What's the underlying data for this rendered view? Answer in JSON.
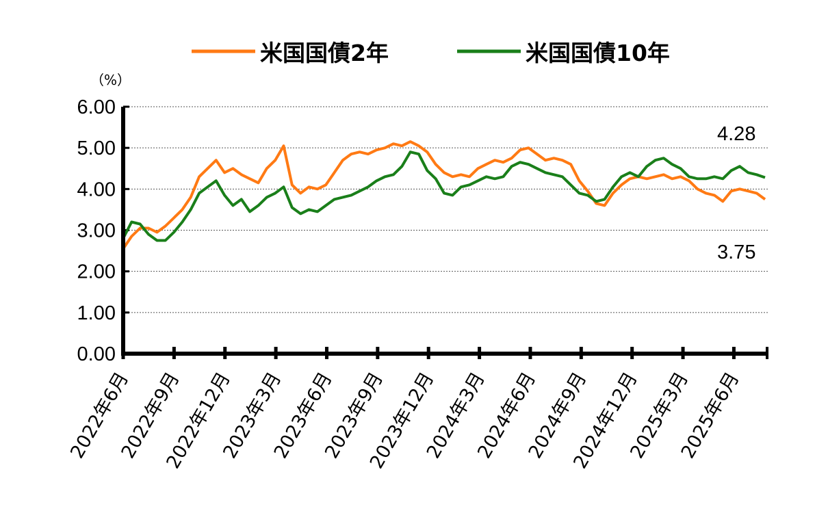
{
  "chart_data": {
    "type": "line",
    "ylabel": "（%）",
    "ylim": [
      0,
      6
    ],
    "yticks": [
      "0.00",
      "1.00",
      "2.00",
      "3.00",
      "4.00",
      "5.00",
      "6.00"
    ],
    "grid": "horizontal-dashed",
    "legend_position": "top",
    "x_range": [
      "2022-06",
      "2025-07"
    ],
    "xticks": [
      "2022年6月",
      "2022年9月",
      "2022年12月",
      "2023年3月",
      "2023年6月",
      "2023年9月",
      "2023年12月",
      "2024年3月",
      "2024年6月",
      "2024年9月",
      "2024年12月",
      "2025年3月",
      "2025年6月"
    ],
    "x": [
      "2022-06",
      "2022-06",
      "2022-06",
      "2022-07",
      "2022-07",
      "2022-08",
      "2022-08",
      "2022-09",
      "2022-09",
      "2022-10",
      "2022-10",
      "2022-11",
      "2022-11",
      "2022-12",
      "2022-12",
      "2023-01",
      "2023-01",
      "2023-02",
      "2023-02",
      "2023-03",
      "2023-03",
      "2023-03",
      "2023-04",
      "2023-04",
      "2023-05",
      "2023-05",
      "2023-06",
      "2023-06",
      "2023-07",
      "2023-07",
      "2023-08",
      "2023-08",
      "2023-09",
      "2023-09",
      "2023-10",
      "2023-10",
      "2023-11",
      "2023-11",
      "2023-12",
      "2023-12",
      "2024-01",
      "2024-01",
      "2024-02",
      "2024-02",
      "2024-03",
      "2024-03",
      "2024-04",
      "2024-04",
      "2024-05",
      "2024-05",
      "2024-06",
      "2024-06",
      "2024-07",
      "2024-07",
      "2024-08",
      "2024-08",
      "2024-09",
      "2024-09",
      "2024-10",
      "2024-10",
      "2024-11",
      "2024-11",
      "2024-12",
      "2024-12",
      "2025-01",
      "2025-01",
      "2025-02",
      "2025-02",
      "2025-03",
      "2025-03",
      "2025-04",
      "2025-04",
      "2025-05",
      "2025-05",
      "2025-06",
      "2025-06",
      "2025-07"
    ],
    "series": [
      {
        "name": "米国国債2年",
        "color": "#ff7a14",
        "values": [
          2.55,
          2.85,
          3.05,
          3.05,
          2.95,
          3.1,
          3.3,
          3.5,
          3.8,
          4.3,
          4.5,
          4.7,
          4.4,
          4.5,
          4.35,
          4.25,
          4.15,
          4.5,
          4.7,
          5.05,
          4.1,
          3.9,
          4.05,
          4.0,
          4.1,
          4.4,
          4.7,
          4.85,
          4.9,
          4.85,
          4.95,
          5.0,
          5.1,
          5.05,
          5.15,
          5.05,
          4.9,
          4.6,
          4.4,
          4.3,
          4.35,
          4.3,
          4.5,
          4.6,
          4.7,
          4.65,
          4.75,
          4.95,
          5.0,
          4.85,
          4.7,
          4.75,
          4.7,
          4.6,
          4.2,
          3.95,
          3.65,
          3.6,
          3.9,
          4.1,
          4.25,
          4.3,
          4.25,
          4.3,
          4.35,
          4.25,
          4.3,
          4.2,
          4.0,
          3.9,
          3.85,
          3.7,
          3.95,
          4.0,
          3.95,
          3.9,
          3.75
        ]
      },
      {
        "name": "米国国債10年",
        "color": "#1a7f1a",
        "values": [
          2.8,
          3.2,
          3.15,
          2.9,
          2.75,
          2.75,
          2.95,
          3.2,
          3.5,
          3.9,
          4.05,
          4.2,
          3.85,
          3.6,
          3.75,
          3.45,
          3.6,
          3.8,
          3.9,
          4.05,
          3.55,
          3.4,
          3.5,
          3.45,
          3.6,
          3.75,
          3.8,
          3.85,
          3.95,
          4.05,
          4.2,
          4.3,
          4.35,
          4.55,
          4.9,
          4.85,
          4.45,
          4.25,
          3.9,
          3.85,
          4.05,
          4.1,
          4.2,
          4.3,
          4.25,
          4.3,
          4.55,
          4.65,
          4.6,
          4.5,
          4.4,
          4.35,
          4.3,
          4.1,
          3.9,
          3.85,
          3.7,
          3.75,
          4.05,
          4.3,
          4.4,
          4.3,
          4.55,
          4.7,
          4.75,
          4.6,
          4.5,
          4.3,
          4.25,
          4.25,
          4.3,
          4.25,
          4.45,
          4.55,
          4.4,
          4.35,
          4.28
        ]
      }
    ],
    "annotations": [
      "4.28",
      "3.75"
    ]
  }
}
